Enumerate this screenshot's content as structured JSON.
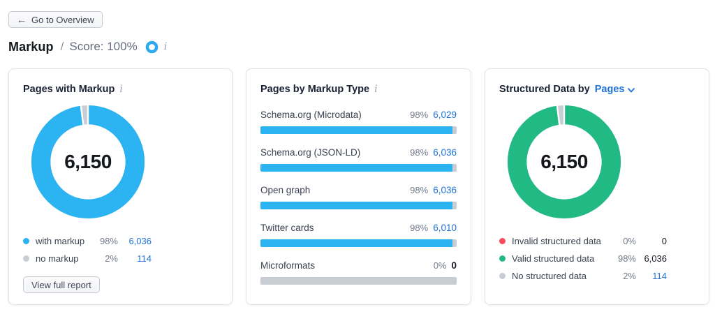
{
  "colors": {
    "accent_blue": "#2CB3F2",
    "link_blue": "#2173D9",
    "green": "#21BA85",
    "red": "#FA4B5C",
    "slice_gray": "#C9CDD4",
    "bar_track_gray": "#C8CCD3",
    "text_dark": "#181C25",
    "text_gray": "#737B8B"
  },
  "header": {
    "back_button": {
      "arrow": "←",
      "label": "Go to Overview"
    },
    "title": "Markup",
    "separator": "/",
    "score": "Score: 100%",
    "score_icon": "blue-ring-icon",
    "info_icon": "i"
  },
  "cards": {
    "pages_with_markup": {
      "title": "Pages with Markup",
      "info_icon": "i",
      "total": "6,150",
      "legend": [
        {
          "label": "with markup",
          "percent": "98%",
          "value": "6,036"
        },
        {
          "label": "no markup",
          "percent": "2%",
          "value": "114"
        }
      ],
      "button": "View full report"
    },
    "pages_by_markup_type": {
      "title": "Pages by Markup Type",
      "info_icon": "i",
      "rows": [
        {
          "label": "Schema.org (Microdata)",
          "percent": "98%",
          "value": "6,029"
        },
        {
          "label": "Schema.org (JSON-LD)",
          "percent": "98%",
          "value": "6,036"
        },
        {
          "label": "Open graph",
          "percent": "98%",
          "value": "6,036"
        },
        {
          "label": "Twitter cards",
          "percent": "98%",
          "value": "6,010"
        },
        {
          "label": "Microformats",
          "percent": "0%",
          "value": "0"
        }
      ]
    },
    "structured_data": {
      "title_prefix": "Structured Data by",
      "dropdown": "Pages",
      "total": "6,150",
      "legend": [
        {
          "label": "Invalid structured data",
          "percent": "0%",
          "value": "0"
        },
        {
          "label": "Valid structured data",
          "percent": "98%",
          "value": "6,036"
        },
        {
          "label": "No structured data",
          "percent": "2%",
          "value": "114"
        }
      ]
    }
  },
  "chart_data": [
    {
      "type": "pie",
      "subtype": "donut",
      "title": "Pages with Markup",
      "center_total": 6150,
      "slices": [
        {
          "label": "with markup",
          "percent": 98,
          "value": 6036,
          "color": "#2CB3F2"
        },
        {
          "label": "no markup",
          "percent": 2,
          "value": 114,
          "color": "#C9CDD4"
        }
      ]
    },
    {
      "type": "bar",
      "title": "Pages by Markup Type",
      "orientation": "horizontal",
      "categories": [
        "Schema.org (Microdata)",
        "Schema.org (JSON-LD)",
        "Open graph",
        "Twitter cards",
        "Microformats"
      ],
      "percents": [
        98,
        98,
        98,
        98,
        0
      ],
      "values": [
        6029,
        6036,
        6036,
        6010,
        0
      ],
      "bar_color": "#2CB3F2",
      "track_color": "#C8CCD3",
      "xlim": [
        0,
        100
      ]
    },
    {
      "type": "pie",
      "subtype": "donut",
      "title": "Structured Data by Pages",
      "center_total": 6150,
      "slices": [
        {
          "label": "Invalid structured data",
          "percent": 0,
          "value": 0,
          "color": "#FA4B5C"
        },
        {
          "label": "Valid structured data",
          "percent": 98,
          "value": 6036,
          "color": "#21BA85"
        },
        {
          "label": "No structured data",
          "percent": 2,
          "value": 114,
          "color": "#C9CDD4"
        }
      ]
    }
  ]
}
